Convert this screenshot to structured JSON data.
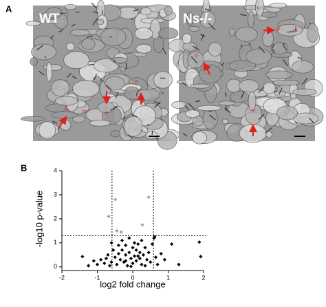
{
  "panel_a": {
    "label": "A",
    "images": [
      {
        "label": "WT",
        "annotations": [
          "p",
          "m",
          "p",
          "p"
        ]
      },
      {
        "label": "Ns-/-",
        "annotations": [
          "p",
          "m",
          "p",
          "p"
        ]
      }
    ]
  },
  "chart_data": {
    "type": "scatter",
    "panel_label": "B",
    "x_label": "log2 fold change",
    "y_label": "-log10 p-value",
    "xlim": [
      -2,
      2
    ],
    "ylim": [
      -0.15,
      4
    ],
    "xticks": [
      -2,
      -1,
      0,
      1,
      2
    ],
    "yticks": [
      0,
      1,
      2,
      3,
      4
    ],
    "vlines": [
      -0.585,
      0.585
    ],
    "hline": 1.3,
    "series": [
      {
        "color": "#a0a0a0",
        "x": [
          -0.49,
          0.45,
          -0.68,
          -0.45,
          -0.33,
          0.27
        ],
        "values": [
          2.8,
          2.9,
          2.1,
          1.5,
          1.45,
          1.75
        ]
      },
      {
        "color": "#000000",
        "x": [
          -0.9,
          -0.8,
          -0.7,
          -0.6,
          -0.55,
          -0.5,
          -0.45,
          -0.4,
          -0.4,
          -0.35,
          -0.3,
          -0.3,
          -0.25,
          -0.2,
          -0.2,
          -0.15,
          -0.1,
          -0.1,
          -0.05,
          0,
          0,
          0.05,
          0.05,
          0.1,
          0.1,
          0.15,
          0.2,
          0.2,
          0.25,
          0.3,
          0.35,
          0.4,
          0.45,
          0.5,
          0.55,
          0.6,
          0.62,
          0.65,
          0.7,
          -1.0,
          -1.1,
          -1.42,
          -1.25,
          1.1,
          1.88,
          1.92,
          0.9,
          1.3,
          -0.6,
          -0.65,
          0.25,
          -0.05,
          0.35,
          -0.75,
          0.8,
          -0.2,
          0.15
        ],
        "values": [
          0.3,
          0.15,
          0.5,
          0.2,
          0.7,
          0.4,
          0.1,
          0.9,
          0.55,
          0.3,
          1.1,
          0.7,
          0.2,
          0.9,
          0.5,
          0.05,
          1.2,
          0.6,
          0.35,
          0.8,
          0.15,
          1.0,
          0.45,
          0.25,
          0.7,
          0.95,
          0.35,
          0.6,
          0.1,
          0.5,
          0.8,
          0.3,
          0.6,
          0.2,
          0.95,
          1.2,
          1.25,
          0.4,
          0.1,
          0.1,
          0.25,
          0.43,
          0.05,
          0.95,
          1.03,
          0.43,
          0.3,
          0.1,
          1.0,
          0.05,
          1.1,
          0.02,
          0.05,
          0.35,
          0.55,
          0.25,
          0.45
        ]
      }
    ]
  }
}
